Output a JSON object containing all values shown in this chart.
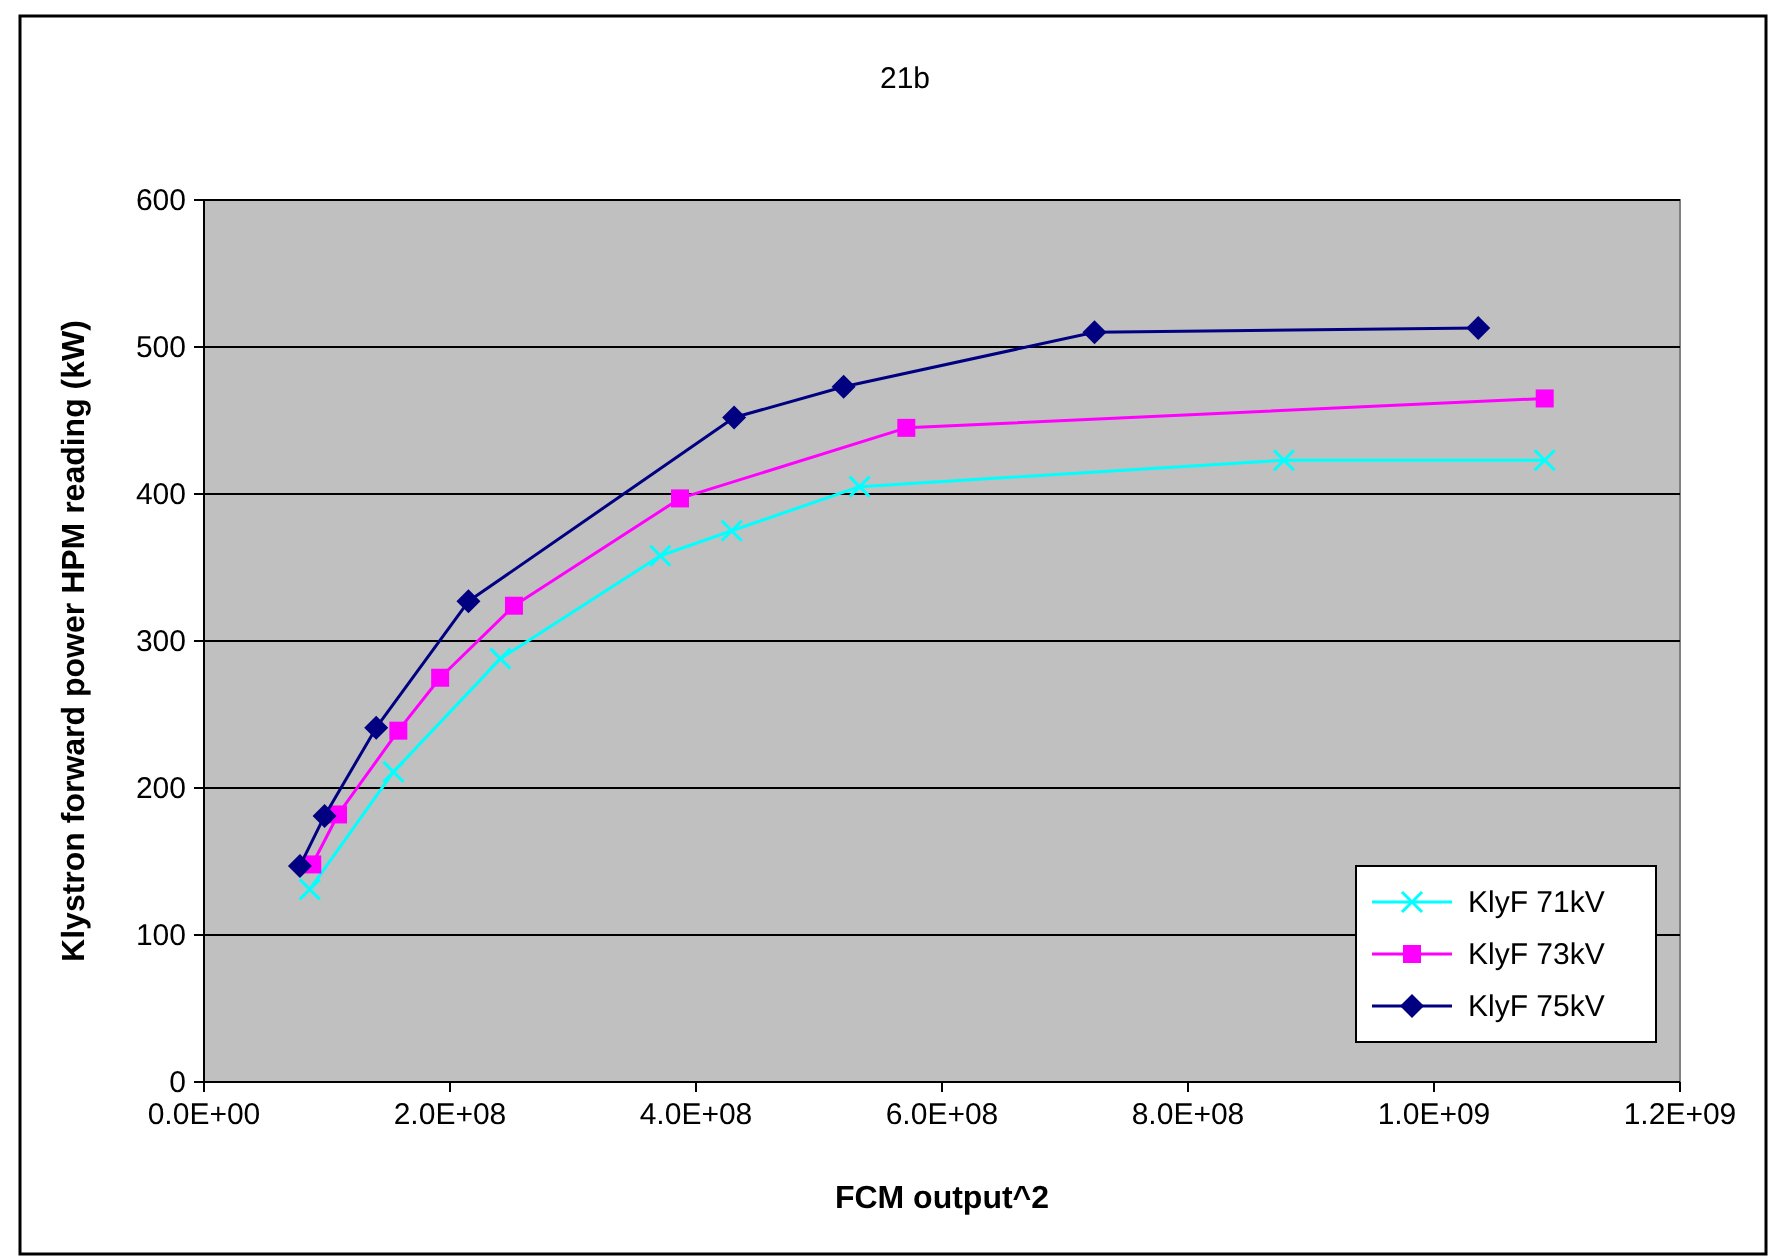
{
  "chart_data": {
    "type": "line",
    "title": "21b",
    "xlabel": "FCM output^2",
    "ylabel": "Klystron forward power HPM reading (kW)",
    "xlim": [
      0,
      1200000000
    ],
    "xticks": [
      {
        "value": 0,
        "label": "0.0E+00"
      },
      {
        "value": 200000000,
        "label": "2.0E+08"
      },
      {
        "value": 400000000,
        "label": "4.0E+08"
      },
      {
        "value": 600000000,
        "label": "6.0E+08"
      },
      {
        "value": 800000000,
        "label": "8.0E+08"
      },
      {
        "value": 1000000000,
        "label": "1.0E+09"
      },
      {
        "value": 1200000000,
        "label": "1.2E+09"
      }
    ],
    "ylim": [
      0,
      600
    ],
    "yticks": [
      0,
      100,
      200,
      300,
      400,
      500,
      600
    ],
    "grid": "y",
    "legend": "bottom right",
    "series": [
      {
        "name": "KlyF 71kV",
        "color": "#00ffff",
        "marker": "cross",
        "x": [
          86000000,
          154000000,
          241000000,
          371000000,
          429000000,
          533000000,
          878000000,
          1090000000
        ],
        "values": [
          131,
          211,
          288,
          358,
          375,
          405,
          423,
          423
        ]
      },
      {
        "name": "KlyF 73kV",
        "color": "#ff00ff",
        "marker": "square",
        "x": [
          88000000,
          109000000,
          158000000,
          192000000,
          252000000,
          387000000,
          571000000,
          1090000000
        ],
        "values": [
          148,
          182,
          239,
          275,
          324,
          397,
          445,
          465
        ]
      },
      {
        "name": "KlyF 75kV",
        "color": "#000080",
        "marker": "diamond",
        "x": [
          78000000,
          98000000,
          140000000,
          215000000,
          431000000,
          520000000,
          724000000,
          1036000000
        ],
        "values": [
          147,
          181,
          241,
          327,
          452,
          473,
          510,
          513
        ]
      }
    ]
  }
}
